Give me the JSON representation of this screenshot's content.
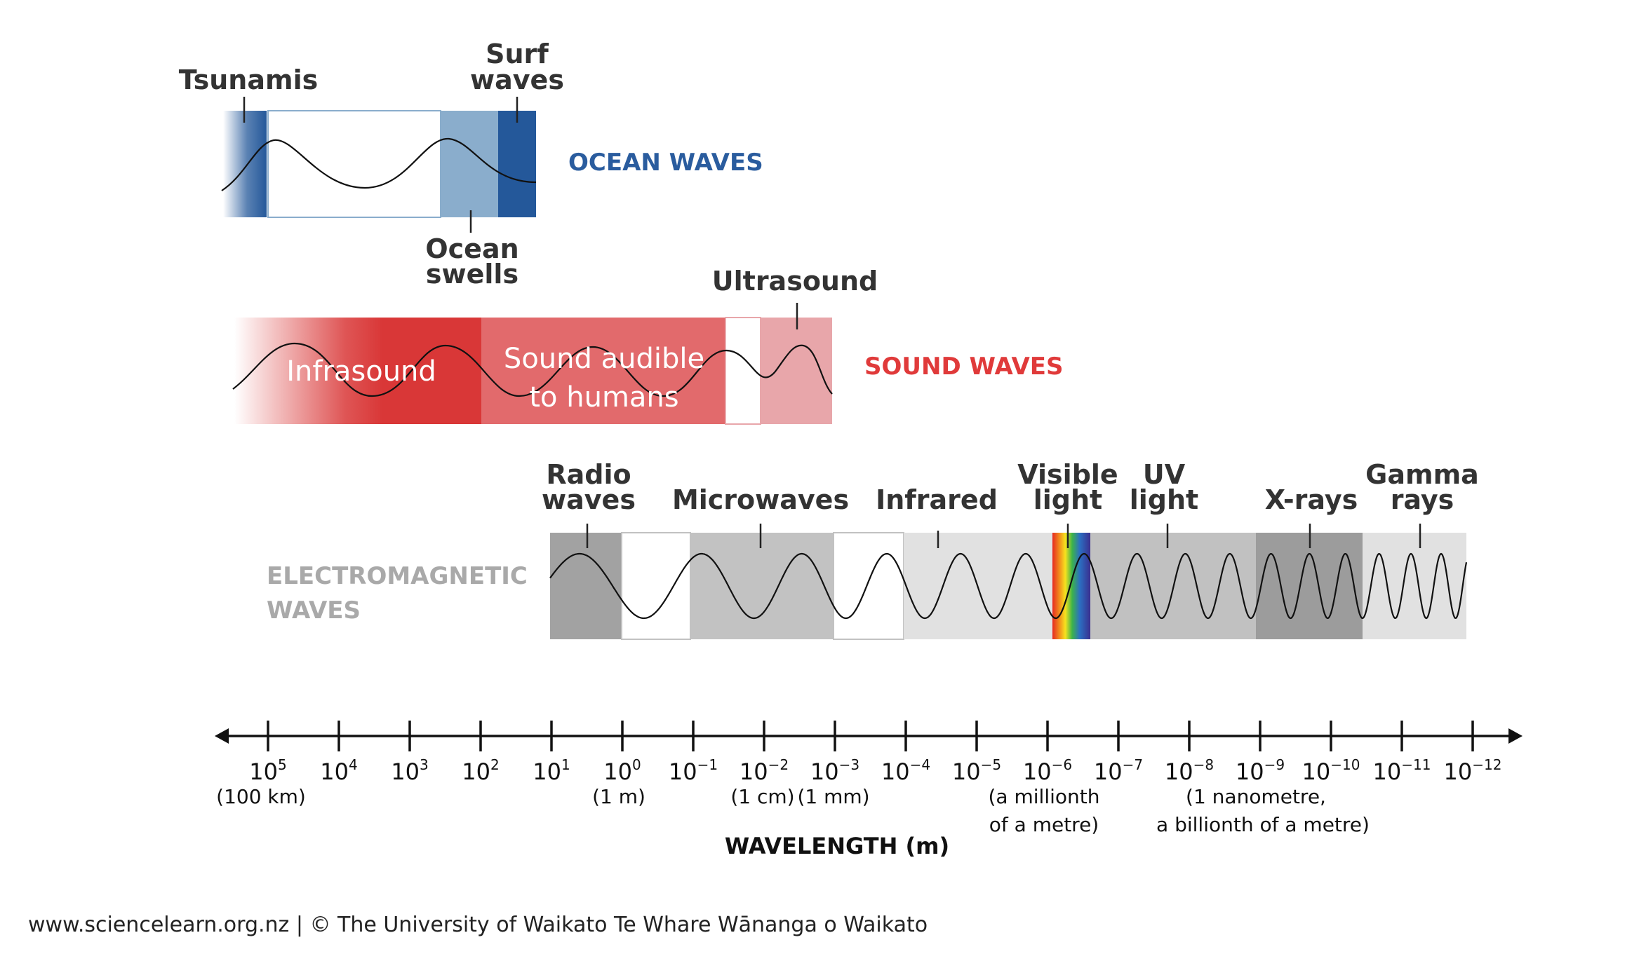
{
  "ocean": {
    "title": "OCEAN WAVES",
    "title_color": "#2a5c9e",
    "labels": {
      "tsunamis": "Tsunamis",
      "surf_1": "Surf",
      "surf_2": "waves",
      "swells_1": "Ocean",
      "swells_2": "swells"
    },
    "colors": {
      "dark": "#24589a",
      "light": "#8aadcc"
    }
  },
  "sound": {
    "title": "SOUND WAVES",
    "title_color": "#e03a3a",
    "labels": {
      "infrasound": "Infrasound",
      "audible_1": "Sound audible",
      "audible_2": "to humans",
      "ultrasound": "Ultrasound"
    },
    "colors": {
      "infra": "#d93737",
      "audible": "#e26a6c",
      "ultra": "#e8a6aa"
    }
  },
  "em": {
    "title_1": "ELECTROMAGNETIC",
    "title_2": "WAVES",
    "title_color": "#a9a9a9",
    "labels": {
      "radio_1": "Radio",
      "radio_2": "waves",
      "microwaves": "Microwaves",
      "infrared": "Infrared",
      "visible_1": "Visible",
      "visible_2": "light",
      "uv_1": "UV",
      "uv_2": "light",
      "xrays": "X-rays",
      "gamma_1": "Gamma",
      "gamma_2": "rays"
    },
    "colors": {
      "radio": "#a2a2a2",
      "microwave": "#c2c2c2",
      "infrared": "#e1e1e1",
      "uv": "#c1c1c1",
      "xray": "#9c9c9c",
      "gamma": "#e1e1e1"
    }
  },
  "axis": {
    "title": "WAVELENGTH (m)",
    "ticks": [
      {
        "base": "10",
        "exp": "5"
      },
      {
        "base": "10",
        "exp": "4"
      },
      {
        "base": "10",
        "exp": "3"
      },
      {
        "base": "10",
        "exp": "2"
      },
      {
        "base": "10",
        "exp": "1"
      },
      {
        "base": "10",
        "exp": "0"
      },
      {
        "base": "10",
        "exp": "−1"
      },
      {
        "base": "10",
        "exp": "−2"
      },
      {
        "base": "10",
        "exp": "−3"
      },
      {
        "base": "10",
        "exp": "−4"
      },
      {
        "base": "10",
        "exp": "−5"
      },
      {
        "base": "10",
        "exp": "−6"
      },
      {
        "base": "10",
        "exp": "−7"
      },
      {
        "base": "10",
        "exp": "−8"
      },
      {
        "base": "10",
        "exp": "−9"
      },
      {
        "base": "10",
        "exp": "−10"
      },
      {
        "base": "10",
        "exp": "−11"
      },
      {
        "base": "10",
        "exp": "−12"
      }
    ],
    "notes": {
      "km": "(100 km)",
      "m": "(1 m)",
      "cm": "(1 cm)",
      "mm": "(1 mm)",
      "micro_1": "(a millionth",
      "micro_2": "of a metre)",
      "nano_1": "(1 nanometre,",
      "nano_2": "a billionth of a metre)"
    }
  },
  "footer": "www.sciencelearn.org.nz | © The University of Waikato Te Whare Wānanga o Waikato"
}
